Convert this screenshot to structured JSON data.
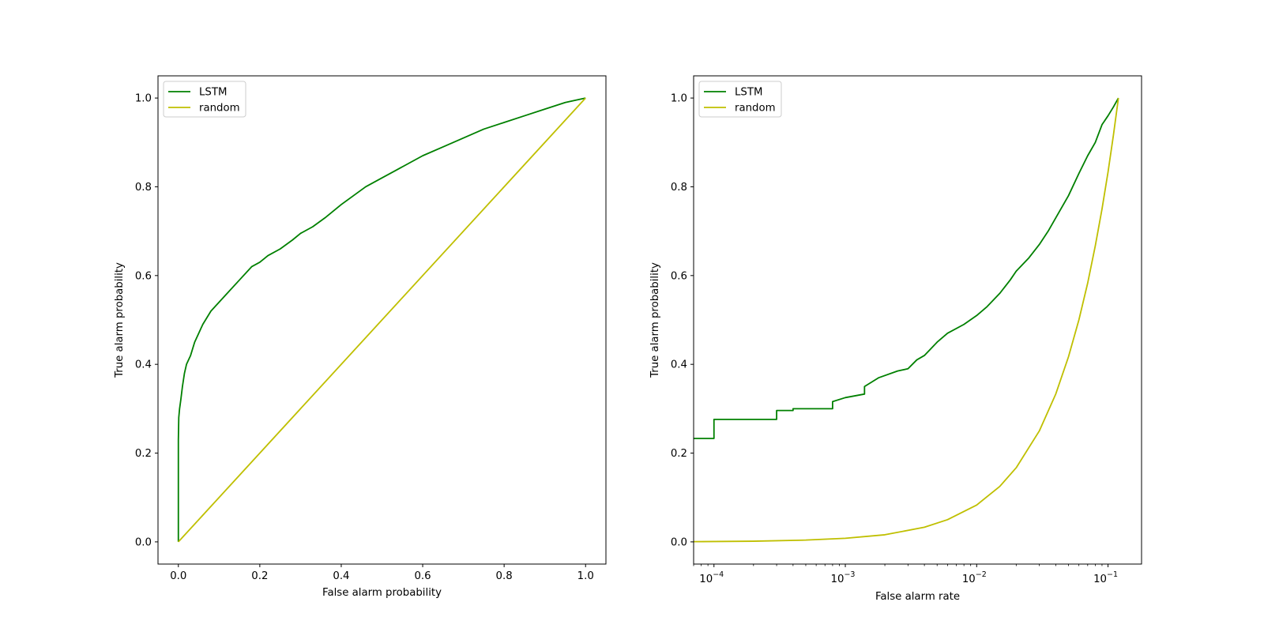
{
  "chart_data": [
    {
      "type": "line",
      "title": "",
      "xlabel": "False alarm probability",
      "ylabel": "True alarm probability",
      "xscale": "linear",
      "xlim": [
        -0.05,
        1.05
      ],
      "ylim": [
        -0.05,
        1.05
      ],
      "xticks": [
        "0.0",
        "0.2",
        "0.4",
        "0.6",
        "0.8",
        "1.0"
      ],
      "yticks": [
        "0.0",
        "0.2",
        "0.4",
        "0.6",
        "0.8",
        "1.0"
      ],
      "grid": false,
      "legend_position": "upper-left",
      "series": [
        {
          "name": "LSTM",
          "color": "#008000",
          "x": [
            0.0,
            0.0,
            0.001,
            0.003,
            0.006,
            0.01,
            0.015,
            0.02,
            0.03,
            0.04,
            0.05,
            0.06,
            0.08,
            0.1,
            0.12,
            0.15,
            0.18,
            0.2,
            0.22,
            0.25,
            0.28,
            0.3,
            0.33,
            0.36,
            0.4,
            0.43,
            0.46,
            0.5,
            0.53,
            0.56,
            0.6,
            0.65,
            0.7,
            0.75,
            0.8,
            0.85,
            0.9,
            0.95,
            1.0
          ],
          "y": [
            0.0,
            0.23,
            0.28,
            0.3,
            0.32,
            0.35,
            0.38,
            0.4,
            0.42,
            0.45,
            0.47,
            0.49,
            0.52,
            0.54,
            0.56,
            0.59,
            0.62,
            0.63,
            0.645,
            0.66,
            0.68,
            0.695,
            0.71,
            0.73,
            0.76,
            0.78,
            0.8,
            0.82,
            0.835,
            0.85,
            0.87,
            0.89,
            0.91,
            0.93,
            0.945,
            0.96,
            0.975,
            0.99,
            1.0
          ]
        },
        {
          "name": "random",
          "color": "#bfbf00",
          "x": [
            0.0,
            1.0
          ],
          "y": [
            0.0,
            1.0
          ]
        }
      ]
    },
    {
      "type": "line",
      "title": "",
      "xlabel": "False alarm rate",
      "ylabel": "True alarm probability",
      "xscale": "log",
      "xlim": [
        7e-05,
        0.18
      ],
      "ylim": [
        -0.05,
        1.05
      ],
      "xticks": [
        {
          "base": "10",
          "exp": "−4",
          "value": 0.0001
        },
        {
          "base": "10",
          "exp": "−3",
          "value": 0.001
        },
        {
          "base": "10",
          "exp": "−2",
          "value": 0.01
        },
        {
          "base": "10",
          "exp": "−1",
          "value": 0.1
        }
      ],
      "yticks": [
        "0.0",
        "0.2",
        "0.4",
        "0.6",
        "0.8",
        "1.0"
      ],
      "grid": false,
      "legend_position": "upper-left",
      "series": [
        {
          "name": "LSTM",
          "color": "#008000",
          "x": [
            7e-05,
            0.0001,
            0.0001,
            0.0003,
            0.0003,
            0.0004,
            0.0004,
            0.0008,
            0.0008,
            0.001,
            0.0014,
            0.0014,
            0.0018,
            0.0025,
            0.003,
            0.0035,
            0.004,
            0.005,
            0.006,
            0.008,
            0.01,
            0.012,
            0.015,
            0.018,
            0.02,
            0.025,
            0.03,
            0.035,
            0.04,
            0.05,
            0.06,
            0.07,
            0.08,
            0.09,
            0.1,
            0.11,
            0.12
          ],
          "y": [
            0.233,
            0.233,
            0.276,
            0.276,
            0.296,
            0.296,
            0.3,
            0.3,
            0.316,
            0.325,
            0.333,
            0.35,
            0.37,
            0.385,
            0.39,
            0.41,
            0.42,
            0.45,
            0.47,
            0.49,
            0.51,
            0.53,
            0.56,
            0.59,
            0.61,
            0.64,
            0.67,
            0.7,
            0.73,
            0.78,
            0.83,
            0.87,
            0.9,
            0.94,
            0.96,
            0.98,
            1.0
          ]
        },
        {
          "name": "random",
          "color": "#bfbf00",
          "x": [
            7e-05,
            0.0002,
            0.0005,
            0.001,
            0.002,
            0.004,
            0.006,
            0.01,
            0.015,
            0.02,
            0.03,
            0.04,
            0.05,
            0.06,
            0.07,
            0.08,
            0.09,
            0.1,
            0.11,
            0.12
          ],
          "y": [
            0.0005,
            0.0015,
            0.004,
            0.008,
            0.016,
            0.033,
            0.05,
            0.083,
            0.125,
            0.167,
            0.25,
            0.333,
            0.417,
            0.5,
            0.583,
            0.667,
            0.75,
            0.833,
            0.917,
            1.0
          ]
        }
      ]
    }
  ]
}
